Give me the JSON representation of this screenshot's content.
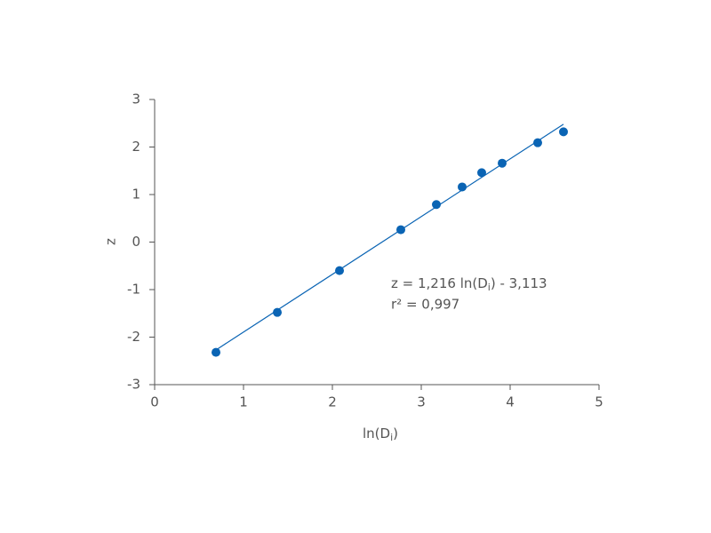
{
  "chart_data": {
    "type": "scatter",
    "x_label": [
      "ln(D",
      "i",
      ")"
    ],
    "y_label": "z",
    "x": [
      0.69,
      1.38,
      2.08,
      2.77,
      3.17,
      3.46,
      3.68,
      3.91,
      4.31,
      4.6
    ],
    "values": [
      -2.32,
      -1.48,
      -0.6,
      0.26,
      0.79,
      1.16,
      1.46,
      1.66,
      2.09,
      2.32
    ],
    "color": "#0a64b4",
    "fit_line": {
      "x": [
        0.69,
        4.6
      ],
      "values": [
        -2.27,
        2.48
      ],
      "color": "#0a64b4"
    },
    "annotations": [
      [
        "z = 1,216 ln(D",
        "i",
        ") - 3,113"
      ],
      [
        "r² = 0,997"
      ]
    ],
    "xlim": [
      0,
      5
    ],
    "xticks": [
      0,
      1,
      2,
      3,
      4,
      5
    ],
    "ylim": [
      -3,
      3
    ],
    "yticks": [
      -3,
      -2,
      -1,
      0,
      1,
      2,
      3
    ]
  }
}
